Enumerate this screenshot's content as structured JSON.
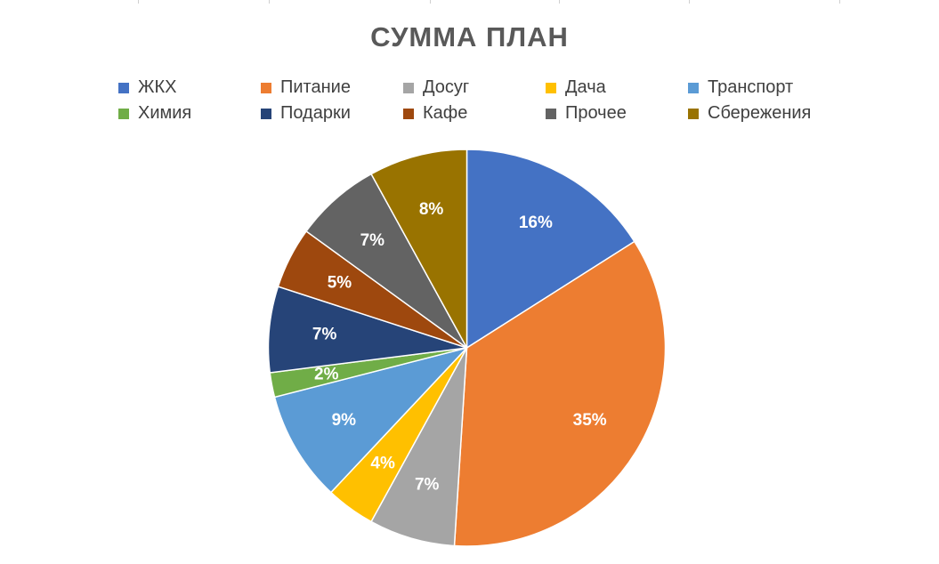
{
  "chart_data": {
    "type": "pie",
    "title": "СУММА ПЛАН",
    "legend_position": "top",
    "categories": [
      "ЖКХ",
      "Питание",
      "Досуг",
      "Дача",
      "Транспорт",
      "Химия",
      "Подарки",
      "Кафе",
      "Прочее",
      "Сбережения"
    ],
    "values": [
      16,
      35,
      7,
      4,
      9,
      2,
      7,
      5,
      7,
      8
    ],
    "data_labels": [
      "16%",
      "35%",
      "7%",
      "4%",
      "9%",
      "2%",
      "7%",
      "5%",
      "7%",
      "8%"
    ],
    "colors": [
      "#4472C4",
      "#ED7D31",
      "#A5A5A5",
      "#FFC000",
      "#5B9BD5",
      "#70AD47",
      "#264478",
      "#9E480E",
      "#636363",
      "#997300"
    ]
  }
}
